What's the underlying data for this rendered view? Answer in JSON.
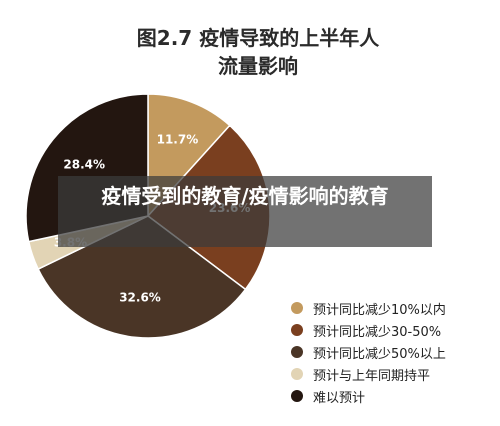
{
  "chart_data": {
    "type": "pie",
    "title_line1": "图2.7 疫情导致的上半年人",
    "title_line2": "流量影响",
    "slices": [
      {
        "name": "预计同比减少10%以内",
        "value": 11.7,
        "label": "11.7%",
        "color": "#c39a5e"
      },
      {
        "name": "预计同比减少30-50%",
        "value": 23.6,
        "label": "23.6%",
        "color": "#7a3f1f"
      },
      {
        "name": "预计同比减少50%以上",
        "value": 32.6,
        "label": "32.6%",
        "color": "#4a3526"
      },
      {
        "name": "预计与上年同期持平",
        "value": 3.8,
        "label": "3.8%",
        "color": "#e2d4b5"
      },
      {
        "name": "难以预计",
        "value": 28.4,
        "label": "28.4%",
        "color": "#231610"
      }
    ],
    "legend_position": "bottom-right"
  },
  "overlay": {
    "text": "疫情受到的教育/疫情影响的教育"
  }
}
